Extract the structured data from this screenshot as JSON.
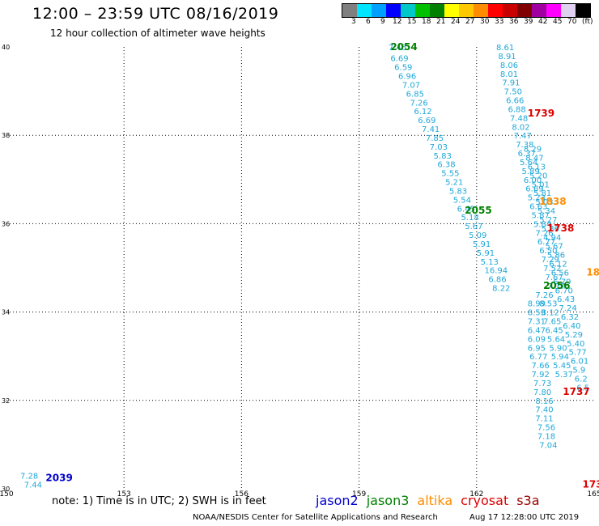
{
  "title": "12:00 – 23:59 UTC 08/16/2019",
  "subtitle": "12 hour collection of altimeter wave heights",
  "legend": {
    "unit": "(ft)",
    "colors": [
      "#7f7f7f",
      "#00e5ff",
      "#00a0ff",
      "#0000ff",
      "#00c8c8",
      "#00c000",
      "#008000",
      "#ffff00",
      "#ffc800",
      "#ff8c00",
      "#ff0000",
      "#c80000",
      "#800000",
      "#a000a0",
      "#ff00ff",
      "#e0d0f0",
      "#000000"
    ],
    "labels": [
      "3",
      "6",
      "9",
      "12",
      "15",
      "18",
      "21",
      "24",
      "27",
      "30",
      "33",
      "36",
      "39",
      "42",
      "45",
      "70"
    ]
  },
  "note": "note: 1) Time is in UTC; 2) SWH is in feet",
  "satellites": [
    {
      "name": "jason2",
      "color": "#0000cc"
    },
    {
      "name": "jason3",
      "color": "#008000"
    },
    {
      "name": "altika",
      "color": "#ff8c00"
    },
    {
      "name": "cryosat",
      "color": "#dd0000"
    },
    {
      "name": "s3a",
      "color": "#990000"
    }
  ],
  "credit": "NOAA/NESDIS Center for Satellite Applications and Research",
  "timestamp": "Aug 17 12:28:00 UTC 2019",
  "chart_data": {
    "type": "scatter",
    "xlim": [
      150,
      165
    ],
    "ylim": [
      30,
      40
    ],
    "xticks": [
      "150",
      "153",
      "156",
      "159",
      "162",
      "165"
    ],
    "yticks": [
      "30",
      "32",
      "34",
      "36",
      "38",
      "40"
    ],
    "grid": true,
    "pass_labels": [
      {
        "text": "2054",
        "color": "#008000",
        "x": 159.8,
        "y": 40.0
      },
      {
        "text": "1739",
        "color": "#dd0000",
        "x": 163.3,
        "y": 38.5
      },
      {
        "text": "1838",
        "color": "#ff8c00",
        "x": 163.6,
        "y": 36.5
      },
      {
        "text": "2055",
        "color": "#008000",
        "x": 161.7,
        "y": 36.3
      },
      {
        "text": "1738",
        "color": "#dd0000",
        "x": 163.8,
        "y": 35.9
      },
      {
        "text": "18",
        "color": "#ff8c00",
        "x": 164.8,
        "y": 34.9
      },
      {
        "text": "2056",
        "color": "#008000",
        "x": 163.7,
        "y": 34.6
      },
      {
        "text": "1737",
        "color": "#dd0000",
        "x": 164.2,
        "y": 32.2
      },
      {
        "text": "2039",
        "color": "#0000cc",
        "x": 151.0,
        "y": 30.25
      },
      {
        "text": "173",
        "color": "#dd0000",
        "x": 164.7,
        "y": 30.1
      }
    ],
    "series": [
      {
        "name": "jason3 2054",
        "color": "#20a8d8",
        "points": [
          [
            159.75,
            40.0,
            "7.46"
          ],
          [
            159.8,
            39.75,
            "6.69"
          ],
          [
            159.9,
            39.55,
            "6.59"
          ],
          [
            160.0,
            39.35,
            "6.96"
          ],
          [
            160.1,
            39.15,
            "7.07"
          ],
          [
            160.2,
            38.95,
            "6.85"
          ],
          [
            160.3,
            38.75,
            "7.26"
          ],
          [
            160.4,
            38.55,
            "6.12"
          ],
          [
            160.5,
            38.35,
            "6.69"
          ],
          [
            160.6,
            38.15,
            "7.41"
          ],
          [
            160.7,
            37.95,
            "7.85"
          ],
          [
            160.8,
            37.75,
            "7.03"
          ],
          [
            160.9,
            37.55,
            "5.83"
          ],
          [
            161.0,
            37.35,
            "6.38"
          ],
          [
            161.1,
            37.15,
            "5.55"
          ],
          [
            161.2,
            36.95,
            "5.21"
          ],
          [
            161.3,
            36.75,
            "5.83"
          ],
          [
            161.4,
            36.55,
            "5.54"
          ],
          [
            161.5,
            36.35,
            "6.45"
          ],
          [
            161.6,
            36.15,
            "5.18"
          ],
          [
            161.7,
            35.95,
            "5.67"
          ],
          [
            161.8,
            35.75,
            "5.09"
          ],
          [
            161.9,
            35.55,
            "5.91"
          ],
          [
            162.0,
            35.35,
            "5.91"
          ],
          [
            162.1,
            35.15,
            "5.13"
          ],
          [
            162.2,
            34.95,
            "16.94"
          ],
          [
            162.3,
            34.75,
            "6.86"
          ],
          [
            162.4,
            34.55,
            "8.22"
          ]
        ]
      },
      {
        "name": "cryosat 1739",
        "color": "#20a8d8",
        "points": [
          [
            162.5,
            40.0,
            "8.61"
          ],
          [
            162.55,
            39.8,
            "8.91"
          ],
          [
            162.6,
            39.6,
            "8.06"
          ],
          [
            162.6,
            39.4,
            "8.01"
          ],
          [
            162.65,
            39.2,
            "7.91"
          ],
          [
            162.7,
            39.0,
            "7.50"
          ],
          [
            162.75,
            38.8,
            "6.66"
          ],
          [
            162.8,
            38.6,
            "6.88"
          ],
          [
            162.85,
            38.4,
            "7.48"
          ],
          [
            162.9,
            38.2,
            "8.02"
          ],
          [
            162.95,
            38.0,
            "7.47"
          ],
          [
            163.0,
            37.8,
            "7.38"
          ],
          [
            163.05,
            37.6,
            "6.37"
          ],
          [
            163.1,
            37.4,
            "5.64"
          ],
          [
            163.15,
            37.2,
            "5.89"
          ],
          [
            163.2,
            37.0,
            "6.00"
          ],
          [
            163.25,
            36.8,
            "6.69"
          ],
          [
            163.3,
            36.6,
            "5.23"
          ],
          [
            163.35,
            36.4,
            "6.63"
          ],
          [
            163.4,
            36.2,
            "5.87"
          ],
          [
            163.45,
            36.0,
            "5.84"
          ],
          [
            163.5,
            35.8,
            "7.26"
          ],
          [
            163.55,
            35.6,
            "6.77"
          ],
          [
            163.6,
            35.4,
            "6.50"
          ],
          [
            163.65,
            35.2,
            "7.29"
          ],
          [
            163.7,
            35.0,
            "7.52"
          ],
          [
            163.75,
            34.8,
            "7.67"
          ],
          [
            163.8,
            34.6,
            "7.37"
          ]
        ]
      },
      {
        "name": "altika 1838",
        "color": "#20a8d8",
        "points": [
          [
            163.2,
            37.7,
            "8.29"
          ],
          [
            163.25,
            37.5,
            "8.47"
          ],
          [
            163.3,
            37.3,
            "6.13"
          ],
          [
            163.35,
            37.1,
            "5.20"
          ],
          [
            163.4,
            36.9,
            "5.01"
          ],
          [
            163.45,
            36.7,
            "5.81"
          ],
          [
            163.5,
            36.5,
            "5.03"
          ],
          [
            163.55,
            36.3,
            "5.34"
          ],
          [
            163.6,
            36.1,
            "5.27"
          ],
          [
            163.65,
            35.9,
            "5.86"
          ],
          [
            163.7,
            35.7,
            "4.94"
          ],
          [
            163.75,
            35.5,
            "5.67"
          ],
          [
            163.8,
            35.3,
            "5.86"
          ],
          [
            163.85,
            35.1,
            "6.12"
          ],
          [
            163.9,
            34.9,
            "6.56"
          ],
          [
            163.95,
            34.7,
            "6.79"
          ],
          [
            164.0,
            34.5,
            "6.70"
          ],
          [
            164.05,
            34.3,
            "6.43"
          ],
          [
            164.1,
            34.1,
            "7.24"
          ],
          [
            164.15,
            33.9,
            "6.32"
          ],
          [
            164.2,
            33.7,
            "6.40"
          ],
          [
            164.25,
            33.5,
            "5.29"
          ],
          [
            164.3,
            33.3,
            "5.40"
          ],
          [
            164.35,
            33.1,
            "5.77"
          ],
          [
            164.4,
            32.9,
            "6.01"
          ],
          [
            164.45,
            32.7,
            "5.9"
          ],
          [
            164.5,
            32.5,
            "6.2"
          ],
          [
            164.55,
            32.3,
            "6.5"
          ]
        ]
      },
      {
        "name": "jason3 2056",
        "color": "#20a8d8",
        "points": [
          [
            163.5,
            34.4,
            "7.26"
          ],
          [
            163.6,
            34.2,
            "8.53"
          ],
          [
            163.65,
            34.0,
            "8.12"
          ],
          [
            163.7,
            33.8,
            "7.65"
          ],
          [
            163.75,
            33.6,
            "6.45"
          ],
          [
            163.8,
            33.4,
            "5.64"
          ],
          [
            163.85,
            33.2,
            "5.90"
          ],
          [
            163.9,
            33.0,
            "5.94"
          ],
          [
            163.95,
            32.8,
            "5.45"
          ],
          [
            164.0,
            32.6,
            "5.37"
          ],
          [
            163.3,
            34.2,
            "8.99"
          ],
          [
            163.3,
            34.0,
            "8.53"
          ],
          [
            163.3,
            33.8,
            "7.31"
          ],
          [
            163.3,
            33.6,
            "6.47"
          ],
          [
            163.3,
            33.4,
            "6.09"
          ],
          [
            163.3,
            33.2,
            "6.95"
          ],
          [
            163.35,
            33.0,
            "6.77"
          ],
          [
            163.4,
            32.8,
            "7.66"
          ],
          [
            163.4,
            32.6,
            "7.92"
          ],
          [
            163.45,
            32.4,
            "7.73"
          ],
          [
            163.45,
            32.2,
            "7.80"
          ],
          [
            163.5,
            32.0,
            "8.16"
          ],
          [
            163.5,
            31.8,
            "7.40"
          ],
          [
            163.5,
            31.6,
            "7.11"
          ],
          [
            163.55,
            31.4,
            "7.56"
          ],
          [
            163.55,
            31.2,
            "7.18"
          ],
          [
            163.6,
            31.0,
            "7.04"
          ]
        ]
      },
      {
        "name": "jason2 2039",
        "color": "#20a8d8",
        "points": [
          [
            150.35,
            30.3,
            "7.28"
          ],
          [
            150.45,
            30.1,
            "7.44"
          ]
        ]
      }
    ]
  }
}
